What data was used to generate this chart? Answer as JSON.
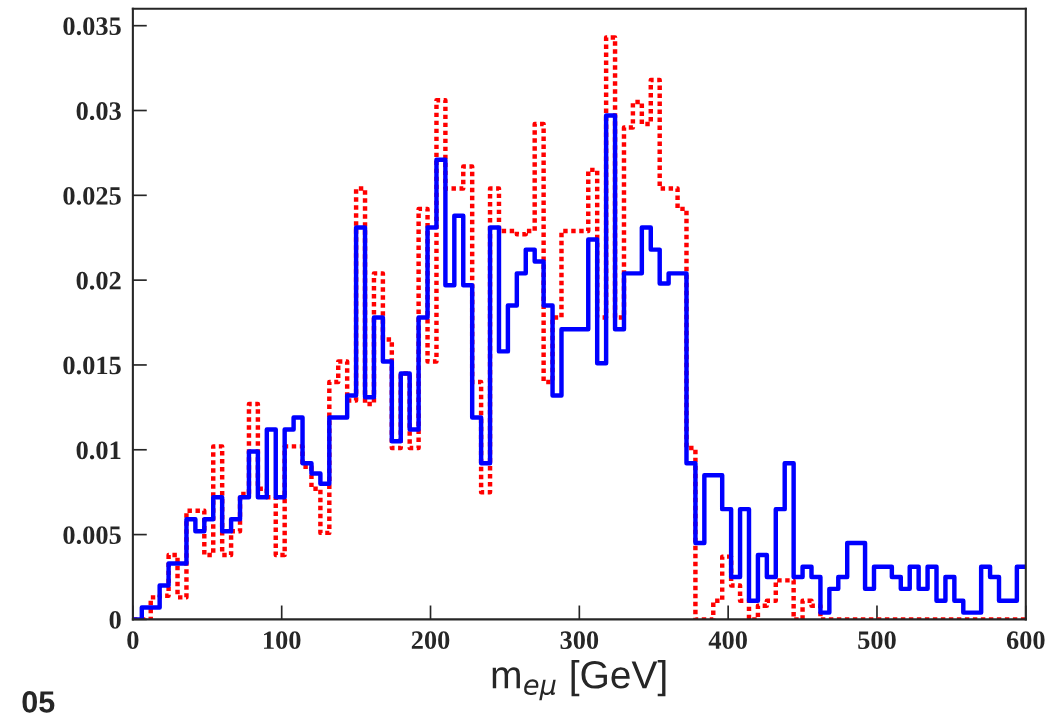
{
  "chart_data": {
    "type": "histogram",
    "xlabel": "m$_{eμ}$ [GeV]",
    "annotations": [
      "05"
    ],
    "bins": [
      0,
      6,
      12,
      18,
      24,
      30,
      36,
      42,
      48,
      54,
      60,
      66,
      72,
      78,
      84,
      90,
      96,
      102,
      108,
      114,
      120,
      126,
      132,
      138,
      144,
      150,
      156,
      162,
      168,
      174,
      180,
      186,
      192,
      198,
      204,
      210,
      216,
      222,
      228,
      234,
      240,
      246,
      252,
      258,
      264,
      270,
      276,
      282,
      288,
      294,
      300,
      306,
      312,
      318,
      324,
      330,
      336,
      342,
      348,
      354,
      360,
      366,
      372,
      378,
      384,
      390,
      396,
      402,
      408,
      414,
      420,
      426,
      432,
      438,
      444,
      450,
      456,
      462,
      468,
      474,
      480,
      486,
      492,
      498,
      504,
      510,
      516,
      522,
      528,
      534,
      540,
      546,
      552,
      558,
      564,
      570,
      576,
      582,
      588,
      594,
      600
    ],
    "series": [
      {
        "color": "#ff0000",
        "line_style": "dotted",
        "values": [
          0,
          0,
          0.0013,
          0.0014,
          0.0038,
          0.0013,
          0.0064,
          0.0064,
          0.0038,
          0.0102,
          0.0038,
          0.0052,
          0.0074,
          0.0127,
          0.0077,
          0.0072,
          0.0038,
          0.0102,
          0.0102,
          0.009,
          0.0077,
          0.0051,
          0.014,
          0.0152,
          0.0129,
          0.0254,
          0.0127,
          0.0204,
          0.0165,
          0.0101,
          0.0145,
          0.0101,
          0.0242,
          0.0152,
          0.0306,
          0.0254,
          0.0254,
          0.0267,
          0.014,
          0.0075,
          0.0254,
          0.0229,
          0.0229,
          0.0227,
          0.0229,
          0.0292,
          0.014,
          0.0178,
          0.0229,
          0.0229,
          0.0229,
          0.0265,
          0.0178,
          0.0343,
          0.0178,
          0.029,
          0.0305,
          0.0292,
          0.0318,
          0.0254,
          0.0254,
          0.0242,
          0.0101,
          0,
          0,
          0.0011,
          0.0037,
          0.002,
          0.0011,
          0,
          0.0008,
          0.0011,
          0.0023,
          0.0023,
          0,
          0.0011,
          0.0008,
          0,
          0,
          0,
          0,
          0,
          0,
          0,
          0,
          0,
          0,
          0,
          0,
          0,
          0,
          0,
          0,
          0,
          0,
          0,
          0,
          0,
          0,
          0
        ]
      },
      {
        "color": "#0000ff",
        "line_style": "solid",
        "values": [
          0,
          0.0007,
          0.0007,
          0.002,
          0.0033,
          0.0033,
          0.0059,
          0.0052,
          0.0059,
          0.0072,
          0.0052,
          0.0059,
          0.0072,
          0.0099,
          0.0072,
          0.0112,
          0.0072,
          0.0112,
          0.0119,
          0.0092,
          0.0086,
          0.008,
          0.0119,
          0.0119,
          0.0132,
          0.0231,
          0.0131,
          0.0178,
          0.0152,
          0.0105,
          0.0145,
          0.0112,
          0.0178,
          0.0231,
          0.0271,
          0.0197,
          0.0238,
          0.0197,
          0.0119,
          0.0092,
          0.0231,
          0.0158,
          0.0185,
          0.0204,
          0.0218,
          0.0211,
          0.0185,
          0.0132,
          0.0171,
          0.0171,
          0.0171,
          0.0224,
          0.0151,
          0.0297,
          0.0171,
          0.0204,
          0.0204,
          0.0231,
          0.0218,
          0.0198,
          0.0204,
          0.0204,
          0.0092,
          0.0045,
          0.0085,
          0.0085,
          0.0065,
          0.0025,
          0.0065,
          0.0011,
          0.0038,
          0.0025,
          0.0065,
          0.0092,
          0.0025,
          0.0031,
          0.0025,
          0.0004,
          0.0018,
          0.0025,
          0.0045,
          0.0045,
          0.0018,
          0.0031,
          0.0031,
          0.0025,
          0.0018,
          0.0031,
          0.0018,
          0.0031,
          0.0011,
          0.0025,
          0.0011,
          0.0004,
          0.0004,
          0.0031,
          0.0025,
          0.0011,
          0.0011,
          0.0031
        ]
      }
    ],
    "xlim": [
      0,
      600
    ],
    "xticks": [
      0,
      100,
      200,
      300,
      400,
      500,
      600
    ],
    "ylim": [
      0,
      0.036
    ],
    "yticks": [
      0,
      0.005,
      0.01,
      0.015,
      0.02,
      0.025,
      0.03,
      0.035
    ],
    "grid": false,
    "legend": false
  }
}
